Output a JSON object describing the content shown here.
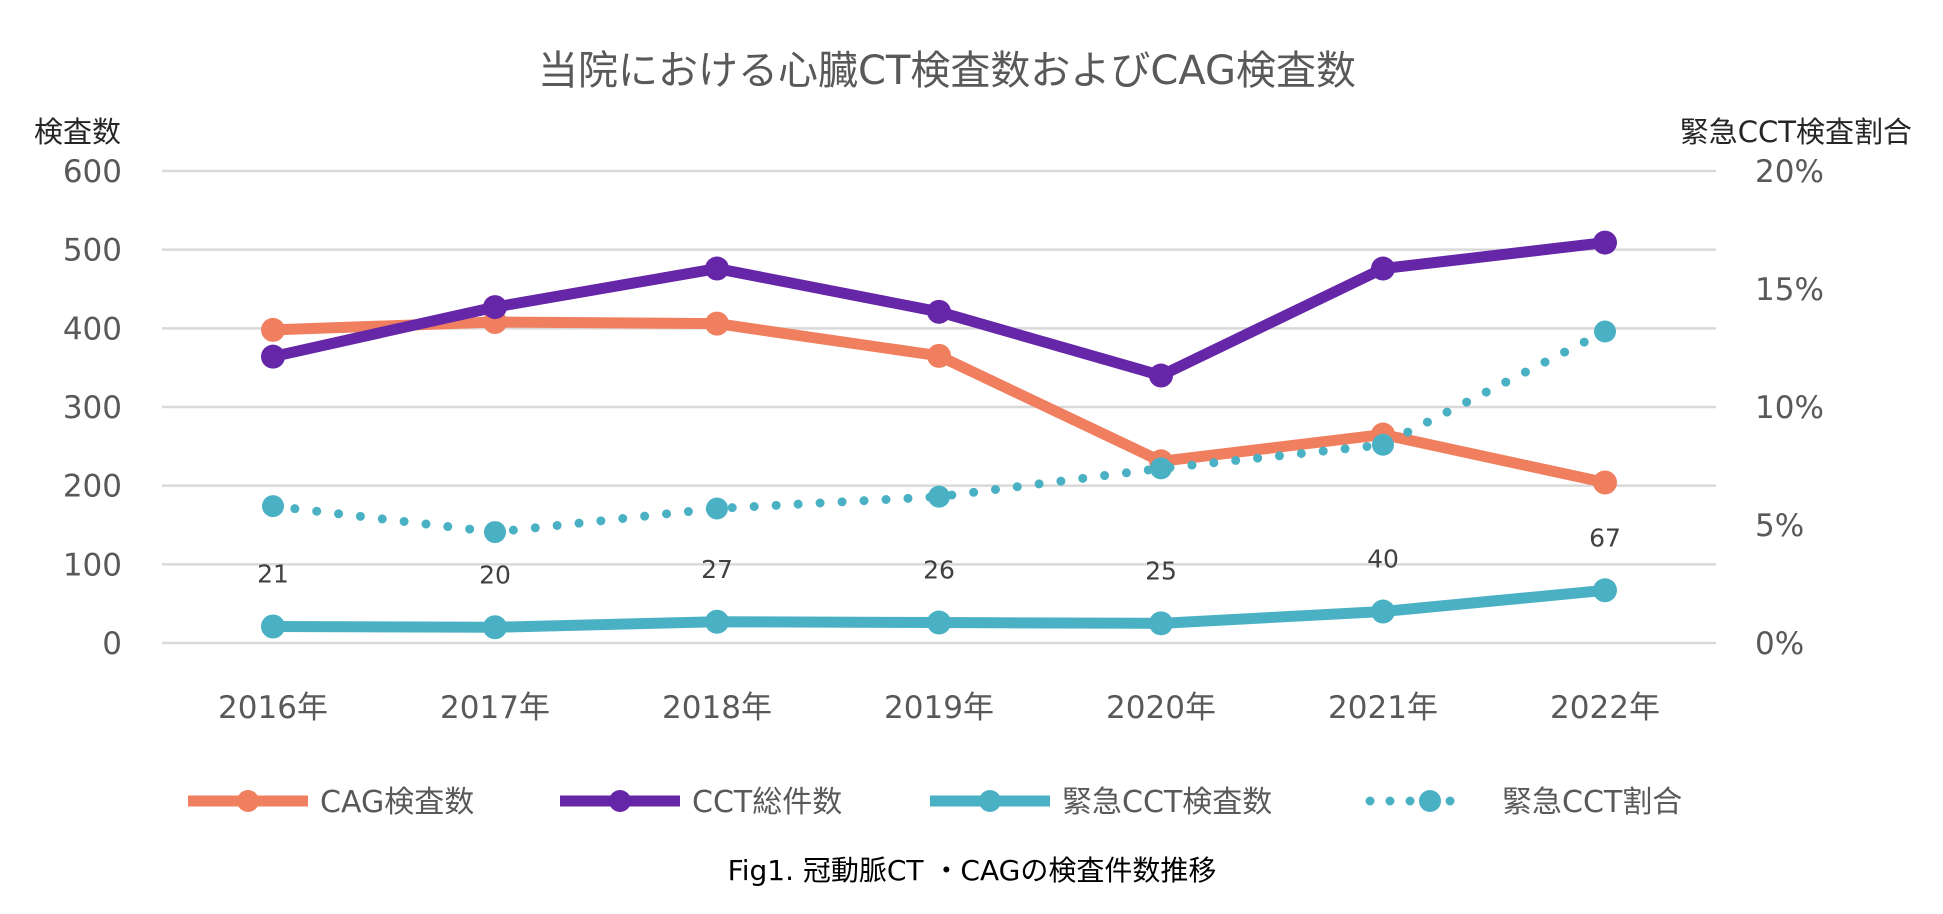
{
  "chart_data": {
    "type": "line",
    "title": "当院における心臓CT検査数およびCAG検査数",
    "caption": "Fig1. 冠動脈CT ・CAGの検査件数推移",
    "ylabel": "検査数",
    "y2label": "緊急CCT検査割合",
    "categories": [
      "2016年",
      "2017年",
      "2018年",
      "2019年",
      "2020年",
      "2021年",
      "2022年"
    ],
    "ylim": [
      0,
      600
    ],
    "yticks": [
      "0",
      "100",
      "200",
      "300",
      "400",
      "500",
      "600"
    ],
    "y2lim": [
      0,
      20
    ],
    "y2ticks": [
      "0%",
      "5%",
      "10%",
      "15%",
      "20%"
    ],
    "grid": true,
    "legend_position": "bottom",
    "series": [
      {
        "name": "CAG検査数",
        "axis": "left",
        "style": "solid",
        "color": "#F07F5F",
        "values": [
          398,
          408,
          406,
          365,
          231,
          265,
          204
        ]
      },
      {
        "name": "CCT総件数",
        "axis": "left",
        "style": "solid",
        "color": "#6526A8",
        "values": [
          364,
          427,
          476,
          421,
          340,
          476,
          509
        ]
      },
      {
        "name": "緊急CCT検査数",
        "axis": "left",
        "style": "solid",
        "color": "#4AB1C4",
        "values": [
          21,
          20,
          27,
          26,
          25,
          40,
          67
        ],
        "data_labels": [
          "21",
          "20",
          "27",
          "26",
          "25",
          "40",
          "67"
        ]
      },
      {
        "name": "緊急CCT割合",
        "axis": "right",
        "style": "dotted",
        "color": "#4AB1C4",
        "values": [
          5.8,
          4.7,
          5.7,
          6.2,
          7.4,
          8.4,
          13.2
        ]
      }
    ]
  }
}
